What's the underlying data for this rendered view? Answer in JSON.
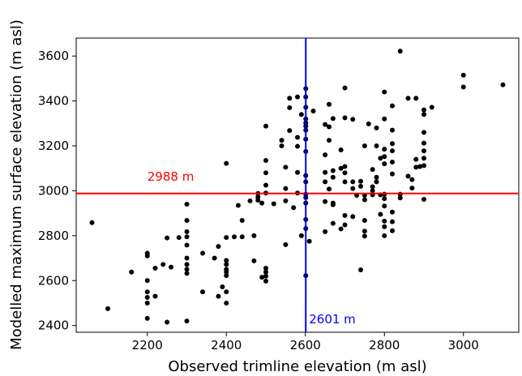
{
  "chart_data": {
    "type": "scatter",
    "title": "",
    "xlabel": "Observed trimline elevation (m asl)",
    "ylabel": "Modelled maximum surface elevation (m asl)",
    "xlim": [
      2020,
      3140
    ],
    "ylim": [
      2370,
      3680
    ],
    "xticks": [
      2200,
      2400,
      2600,
      2800,
      3000
    ],
    "yticks": [
      2400,
      2600,
      2800,
      3000,
      3200,
      3400,
      3600
    ],
    "grid": false,
    "point_color": "#000000",
    "reference_lines": {
      "horizontal": {
        "value": 2988,
        "label": "2988 m",
        "color": "#ff0000"
      },
      "vertical": {
        "value": 2601,
        "label": "2601 m",
        "color": "#0000ff"
      }
    },
    "points": [
      [
        2060,
        2858
      ],
      [
        2100,
        2475
      ],
      [
        2160,
        2638
      ],
      [
        2200,
        2722
      ],
      [
        2200,
        2710
      ],
      [
        2200,
        2600
      ],
      [
        2200,
        2550
      ],
      [
        2200,
        2525
      ],
      [
        2200,
        2500
      ],
      [
        2200,
        2432
      ],
      [
        2220,
        2530
      ],
      [
        2220,
        2655
      ],
      [
        2240,
        2672
      ],
      [
        2250,
        2415
      ],
      [
        2250,
        2790
      ],
      [
        2260,
        2660
      ],
      [
        2280,
        2792
      ],
      [
        2300,
        2940
      ],
      [
        2300,
        2868
      ],
      [
        2300,
        2818
      ],
      [
        2300,
        2795
      ],
      [
        2300,
        2758
      ],
      [
        2300,
        2700
      ],
      [
        2300,
        2672
      ],
      [
        2300,
        2650
      ],
      [
        2300,
        2632
      ],
      [
        2300,
        2420
      ],
      [
        2340,
        2550
      ],
      [
        2340,
        2722
      ],
      [
        2370,
        2700
      ],
      [
        2380,
        2752
      ],
      [
        2380,
        2530
      ],
      [
        2390,
        2572
      ],
      [
        2400,
        3122
      ],
      [
        2400,
        2792
      ],
      [
        2400,
        2690
      ],
      [
        2400,
        2672
      ],
      [
        2400,
        2650
      ],
      [
        2400,
        2638
      ],
      [
        2400,
        2622
      ],
      [
        2400,
        2550
      ],
      [
        2400,
        2500
      ],
      [
        2420,
        2795
      ],
      [
        2430,
        2935
      ],
      [
        2440,
        2868
      ],
      [
        2440,
        2795
      ],
      [
        2460,
        2955
      ],
      [
        2470,
        2688
      ],
      [
        2470,
        2800
      ],
      [
        2480,
        2988
      ],
      [
        2480,
        2972
      ],
      [
        2480,
        2958
      ],
      [
        2490,
        2945
      ],
      [
        2490,
        2615
      ],
      [
        2500,
        3288
      ],
      [
        2500,
        3135
      ],
      [
        2500,
        3080
      ],
      [
        2500,
        3025
      ],
      [
        2500,
        2990
      ],
      [
        2500,
        2655
      ],
      [
        2500,
        2638
      ],
      [
        2500,
        2620
      ],
      [
        2500,
        2598
      ],
      [
        2520,
        2942
      ],
      [
        2540,
        3225
      ],
      [
        2540,
        3200
      ],
      [
        2550,
        3105
      ],
      [
        2550,
        3010
      ],
      [
        2550,
        2955
      ],
      [
        2550,
        2760
      ],
      [
        2560,
        3412
      ],
      [
        2560,
        3370
      ],
      [
        2560,
        3268
      ],
      [
        2570,
        2925
      ],
      [
        2580,
        3418
      ],
      [
        2580,
        3238
      ],
      [
        2580,
        3198
      ],
      [
        2580,
        3082
      ],
      [
        2580,
        2990
      ],
      [
        2590,
        3340
      ],
      [
        2590,
        2800
      ],
      [
        2601,
        3455
      ],
      [
        2601,
        3418
      ],
      [
        2601,
        3372
      ],
      [
        2601,
        3320
      ],
      [
        2601,
        3302
      ],
      [
        2601,
        3288
      ],
      [
        2601,
        3270
      ],
      [
        2601,
        3230
      ],
      [
        2601,
        3175
      ],
      [
        2601,
        3068
      ],
      [
        2601,
        3040
      ],
      [
        2601,
        2985
      ],
      [
        2601,
        2970
      ],
      [
        2601,
        2945
      ],
      [
        2601,
        2872
      ],
      [
        2601,
        2832
      ],
      [
        2601,
        2622
      ],
      [
        2610,
        2775
      ],
      [
        2620,
        3355
      ],
      [
        2650,
        3295
      ],
      [
        2650,
        3160
      ],
      [
        2650,
        3082
      ],
      [
        2650,
        3040
      ],
      [
        2650,
        2952
      ],
      [
        2650,
        2818
      ],
      [
        2660,
        3385
      ],
      [
        2660,
        3285
      ],
      [
        2660,
        3225
      ],
      [
        2660,
        3008
      ],
      [
        2670,
        3322
      ],
      [
        2670,
        3090
      ],
      [
        2670,
        3060
      ],
      [
        2670,
        2945
      ],
      [
        2670,
        2938
      ],
      [
        2670,
        2855
      ],
      [
        2690,
        3182
      ],
      [
        2690,
        3100
      ],
      [
        2690,
        2830
      ],
      [
        2700,
        3458
      ],
      [
        2700,
        3325
      ],
      [
        2700,
        3108
      ],
      [
        2700,
        3080
      ],
      [
        2700,
        3040
      ],
      [
        2700,
        2890
      ],
      [
        2700,
        2848
      ],
      [
        2720,
        3318
      ],
      [
        2720,
        3040
      ],
      [
        2720,
        3010
      ],
      [
        2720,
        2885
      ],
      [
        2730,
        2980
      ],
      [
        2740,
        3042
      ],
      [
        2740,
        3020
      ],
      [
        2740,
        2648
      ],
      [
        2750,
        3200
      ],
      [
        2750,
        2980
      ],
      [
        2750,
        2960
      ],
      [
        2750,
        2868
      ],
      [
        2750,
        2820
      ],
      [
        2750,
        2798
      ],
      [
        2760,
        3298
      ],
      [
        2770,
        3095
      ],
      [
        2770,
        3018
      ],
      [
        2770,
        3000
      ],
      [
        2770,
        2982
      ],
      [
        2780,
        3280
      ],
      [
        2780,
        3200
      ],
      [
        2780,
        3060
      ],
      [
        2780,
        3040
      ],
      [
        2790,
        3145
      ],
      [
        2790,
        2982
      ],
      [
        2790,
        2895
      ],
      [
        2800,
        3440
      ],
      [
        2800,
        3320
      ],
      [
        2800,
        3185
      ],
      [
        2800,
        3152
      ],
      [
        2800,
        3120
      ],
      [
        2800,
        2985
      ],
      [
        2800,
        2965
      ],
      [
        2800,
        2932
      ],
      [
        2800,
        2865
      ],
      [
        2800,
        2840
      ],
      [
        2800,
        2800
      ],
      [
        2820,
        3378
      ],
      [
        2820,
        3270
      ],
      [
        2820,
        3210
      ],
      [
        2820,
        3178
      ],
      [
        2820,
        3128
      ],
      [
        2820,
        3075
      ],
      [
        2820,
        2905
      ],
      [
        2820,
        2862
      ],
      [
        2820,
        2822
      ],
      [
        2840,
        3622
      ],
      [
        2840,
        2985
      ],
      [
        2840,
        2968
      ],
      [
        2860,
        3412
      ],
      [
        2860,
        3065
      ],
      [
        2870,
        3050
      ],
      [
        2870,
        3012
      ],
      [
        2880,
        3412
      ],
      [
        2880,
        3140
      ],
      [
        2880,
        3105
      ],
      [
        2890,
        3108
      ],
      [
        2900,
        3360
      ],
      [
        2900,
        3340
      ],
      [
        2900,
        3260
      ],
      [
        2900,
        3212
      ],
      [
        2900,
        3178
      ],
      [
        2900,
        3145
      ],
      [
        2900,
        3112
      ],
      [
        2900,
        2962
      ],
      [
        2920,
        3372
      ],
      [
        3000,
        3515
      ],
      [
        3000,
        3462
      ],
      [
        3100,
        3472
      ]
    ]
  }
}
